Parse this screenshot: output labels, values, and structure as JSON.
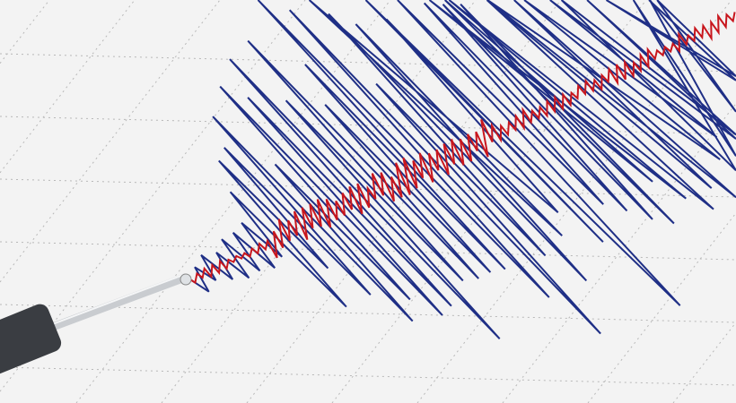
{
  "scene": {
    "subject": "seismograph-illustration",
    "colors": {
      "background": "#f3f3f3",
      "grid": "#b8b8b8",
      "trace_blue": "#1f2f86",
      "trace_red": "#c8161d",
      "pen_body": "#3a3d42",
      "pen_rod": "#c9ccd0"
    }
  }
}
